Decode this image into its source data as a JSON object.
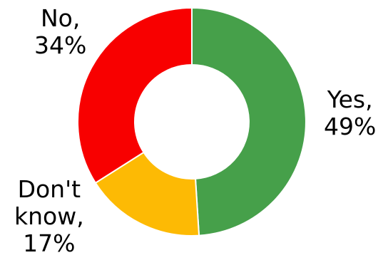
{
  "chart_data": {
    "type": "pie",
    "variant": "donut",
    "slices": [
      {
        "category": "Yes",
        "value": 49,
        "unit": "%",
        "color": "#46A04A",
        "label_lines": [
          "Yes,",
          "49%"
        ]
      },
      {
        "category": "Don't know",
        "value": 17,
        "unit": "%",
        "color": "#FDBA04",
        "label_lines": [
          "Don't",
          "know,",
          "17%"
        ]
      },
      {
        "category": "No",
        "value": 34,
        "unit": "%",
        "color": "#F80000",
        "label_lines": [
          "No,",
          "34%"
        ]
      }
    ],
    "start_angle": "12 o'clock",
    "direction": "clockwise",
    "legend": "none",
    "separator_color": "#FFFFFF"
  }
}
